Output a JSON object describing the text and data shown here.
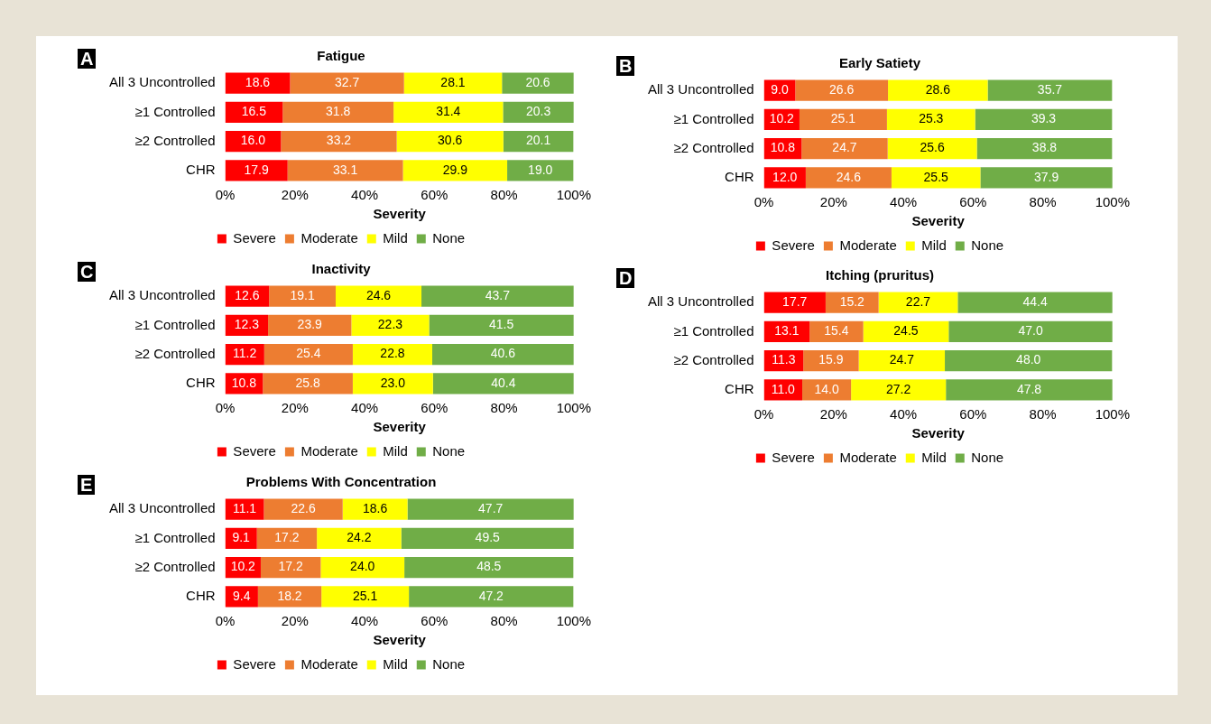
{
  "chart_data": [
    {
      "type": "bar",
      "orientation": "horizontal",
      "stacked": true,
      "title": "Fatigue",
      "xlabel": "Severity",
      "annotations": [
        "A"
      ],
      "legend": "bottom",
      "categories": [
        "All 3 Uncontrolled",
        "≥1 Controlled",
        "≥2 Controlled",
        "CHR"
      ],
      "xlim": [
        0,
        100
      ],
      "xticks": [
        {
          "value": 0,
          "label": "0%"
        },
        {
          "value": 20,
          "label": "20%"
        },
        {
          "value": 40,
          "label": "40%"
        },
        {
          "value": 60,
          "label": "60%"
        },
        {
          "value": 80,
          "label": "80%"
        },
        {
          "value": 100,
          "label": "100%"
        }
      ],
      "series": [
        {
          "name": "Severe",
          "color": "#ff0000",
          "values": [
            18.6,
            16.5,
            16.0,
            17.9
          ],
          "value_labels": [
            "18.6",
            "16.5",
            "16.0",
            "17.9"
          ]
        },
        {
          "name": "Moderate",
          "color": "#ed7d31",
          "values": [
            32.7,
            31.8,
            33.2,
            33.1
          ],
          "value_labels": [
            "32.7",
            "31.8",
            "33.2",
            "33.1"
          ]
        },
        {
          "name": "Mild",
          "color": "#ffff00",
          "values": [
            28.1,
            31.4,
            30.6,
            29.9
          ],
          "value_labels": [
            "28.1",
            "31.4",
            "30.6",
            "29.9"
          ]
        },
        {
          "name": "None",
          "color": "#70ad47",
          "values": [
            20.6,
            20.3,
            20.1,
            19.0
          ],
          "value_labels": [
            "20.6",
            "20.3",
            "20.1",
            "19.0"
          ]
        }
      ]
    },
    {
      "type": "bar",
      "orientation": "horizontal",
      "stacked": true,
      "title": "Early Satiety",
      "xlabel": "Severity",
      "annotations": [
        "B"
      ],
      "legend": "bottom",
      "categories": [
        "All 3 Uncontrolled",
        "≥1 Controlled",
        "≥2 Controlled",
        "CHR"
      ],
      "xlim": [
        0,
        100
      ],
      "xticks": [
        {
          "value": 0,
          "label": "0%"
        },
        {
          "value": 20,
          "label": "20%"
        },
        {
          "value": 40,
          "label": "40%"
        },
        {
          "value": 60,
          "label": "60%"
        },
        {
          "value": 80,
          "label": "80%"
        },
        {
          "value": 100,
          "label": "100%"
        }
      ],
      "series": [
        {
          "name": "Severe",
          "color": "#ff0000",
          "values": [
            9.0,
            10.2,
            10.8,
            12.0
          ],
          "value_labels": [
            "9.0",
            "10.2",
            "10.8",
            "12.0"
          ]
        },
        {
          "name": "Moderate",
          "color": "#ed7d31",
          "values": [
            26.6,
            25.1,
            24.7,
            24.6
          ],
          "value_labels": [
            "26.6",
            "25.1",
            "24.7",
            "24.6"
          ]
        },
        {
          "name": "Mild",
          "color": "#ffff00",
          "values": [
            28.6,
            25.3,
            25.6,
            25.5
          ],
          "value_labels": [
            "28.6",
            "25.3",
            "25.6",
            "25.5"
          ]
        },
        {
          "name": "None",
          "color": "#70ad47",
          "values": [
            35.7,
            39.3,
            38.8,
            37.9
          ],
          "value_labels": [
            "35.7",
            "39.3",
            "38.8",
            "37.9"
          ]
        }
      ]
    },
    {
      "type": "bar",
      "orientation": "horizontal",
      "stacked": true,
      "title": "Inactivity",
      "xlabel": "Severity",
      "annotations": [
        "C"
      ],
      "legend": "bottom",
      "categories": [
        "All 3 Uncontrolled",
        "≥1 Controlled",
        "≥2 Controlled",
        "CHR"
      ],
      "xlim": [
        0,
        100
      ],
      "xticks": [
        {
          "value": 0,
          "label": "0%"
        },
        {
          "value": 20,
          "label": "20%"
        },
        {
          "value": 40,
          "label": "40%"
        },
        {
          "value": 60,
          "label": "60%"
        },
        {
          "value": 80,
          "label": "80%"
        },
        {
          "value": 100,
          "label": "100%"
        }
      ],
      "series": [
        {
          "name": "Severe",
          "color": "#ff0000",
          "values": [
            12.6,
            12.3,
            11.2,
            10.8
          ],
          "value_labels": [
            "12.6",
            "12.3",
            "11.2",
            "10.8"
          ]
        },
        {
          "name": "Moderate",
          "color": "#ed7d31",
          "values": [
            19.1,
            23.9,
            25.4,
            25.8
          ],
          "value_labels": [
            "19.1",
            "23.9",
            "25.4",
            "25.8"
          ]
        },
        {
          "name": "Mild",
          "color": "#ffff00",
          "values": [
            24.6,
            22.3,
            22.8,
            23.0
          ],
          "value_labels": [
            "24.6",
            "22.3",
            "22.8",
            "23.0"
          ]
        },
        {
          "name": "None",
          "color": "#70ad47",
          "values": [
            43.7,
            41.5,
            40.6,
            40.4
          ],
          "value_labels": [
            "43.7",
            "41.5",
            "40.6",
            "40.4"
          ]
        }
      ]
    },
    {
      "type": "bar",
      "orientation": "horizontal",
      "stacked": true,
      "title": "Itching (pruritus)",
      "xlabel": "Severity",
      "annotations": [
        "D"
      ],
      "legend": "bottom",
      "categories": [
        "All 3 Uncontrolled",
        "≥1 Controlled",
        "≥2 Controlled",
        "CHR"
      ],
      "xlim": [
        0,
        100
      ],
      "xticks": [
        {
          "value": 0,
          "label": "0%"
        },
        {
          "value": 20,
          "label": "20%"
        },
        {
          "value": 40,
          "label": "40%"
        },
        {
          "value": 60,
          "label": "60%"
        },
        {
          "value": 80,
          "label": "80%"
        },
        {
          "value": 100,
          "label": "100%"
        }
      ],
      "series": [
        {
          "name": "Severe",
          "color": "#ff0000",
          "values": [
            17.7,
            13.1,
            11.3,
            11.0
          ],
          "value_labels": [
            "17.7",
            "13.1",
            "11.3",
            "11.0"
          ]
        },
        {
          "name": "Moderate",
          "color": "#ed7d31",
          "values": [
            15.2,
            15.4,
            15.9,
            14.0
          ],
          "value_labels": [
            "15.2",
            "15.4",
            "15.9",
            "14.0"
          ]
        },
        {
          "name": "Mild",
          "color": "#ffff00",
          "values": [
            22.7,
            24.5,
            24.7,
            27.2
          ],
          "value_labels": [
            "22.7",
            "24.5",
            "24.7",
            "27.2"
          ]
        },
        {
          "name": "None",
          "color": "#70ad47",
          "values": [
            44.4,
            47.0,
            48.0,
            47.8
          ],
          "value_labels": [
            "44.4",
            "47.0",
            "48.0",
            "47.8"
          ]
        }
      ]
    },
    {
      "type": "bar",
      "orientation": "horizontal",
      "stacked": true,
      "title": "Problems With Concentration",
      "xlabel": "Severity",
      "annotations": [
        "E"
      ],
      "legend": "bottom",
      "categories": [
        "All 3 Uncontrolled",
        "≥1 Controlled",
        "≥2 Controlled",
        "CHR"
      ],
      "xlim": [
        0,
        100
      ],
      "xticks": [
        {
          "value": 0,
          "label": "0%"
        },
        {
          "value": 20,
          "label": "20%"
        },
        {
          "value": 40,
          "label": "40%"
        },
        {
          "value": 60,
          "label": "60%"
        },
        {
          "value": 80,
          "label": "80%"
        },
        {
          "value": 100,
          "label": "100%"
        }
      ],
      "series": [
        {
          "name": "Severe",
          "color": "#ff0000",
          "values": [
            11.1,
            9.1,
            10.2,
            9.4
          ],
          "value_labels": [
            "11.1",
            "9.1",
            "10.2",
            "9.4"
          ]
        },
        {
          "name": "Moderate",
          "color": "#ed7d31",
          "values": [
            22.6,
            17.2,
            17.2,
            18.2
          ],
          "value_labels": [
            "22.6",
            "17.2",
            "17.2",
            "18.2"
          ]
        },
        {
          "name": "Mild",
          "color": "#ffff00",
          "values": [
            18.6,
            24.2,
            24.0,
            25.1
          ],
          "value_labels": [
            "18.6",
            "24.2",
            "24.0",
            "25.1"
          ]
        },
        {
          "name": "None",
          "color": "#70ad47",
          "values": [
            47.7,
            49.5,
            48.5,
            47.2
          ],
          "value_labels": [
            "47.7",
            "49.5",
            "48.5",
            "47.2"
          ]
        }
      ]
    }
  ]
}
